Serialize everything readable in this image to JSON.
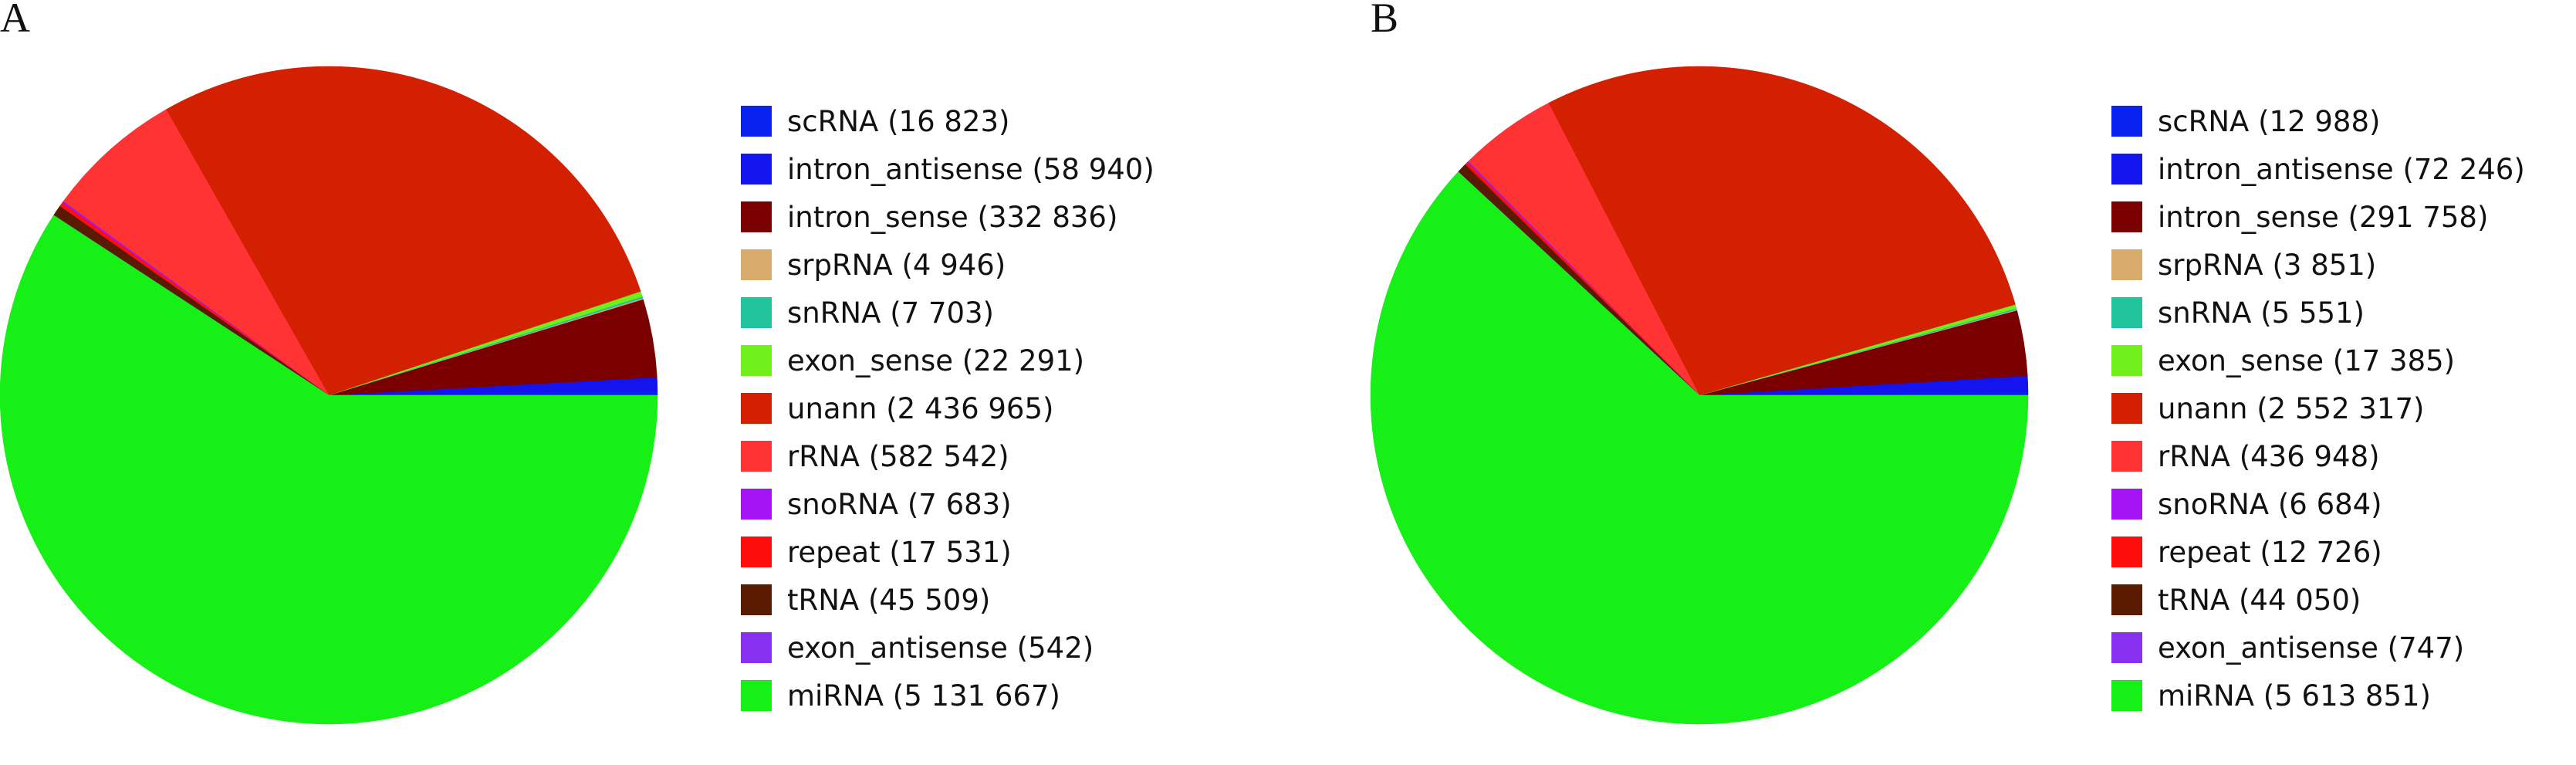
{
  "chart_data": [
    {
      "type": "pie",
      "panel_label": "A",
      "start_angle_deg": 0,
      "direction": "counterclockwise",
      "legend_placement": "right",
      "slices": [
        {
          "label": "scRNA",
          "count": "(16 823)",
          "value": 16823,
          "color": "#0a22f0"
        },
        {
          "label": "intron_antisense",
          "count": "(58 940)",
          "value": 58940,
          "color": "#1414ee"
        },
        {
          "label": "intron_sense",
          "count": "(332 836)",
          "value": 332836,
          "color": "#7a0000"
        },
        {
          "label": "srpRNA",
          "count": "(4 946)",
          "value": 4946,
          "color": "#d8aa6c"
        },
        {
          "label": "snRNA",
          "count": "(7 703)",
          "value": 7703,
          "color": "#21c49c"
        },
        {
          "label": "exon_sense",
          "count": "(22 291)",
          "value": 22291,
          "color": "#70f01a"
        },
        {
          "label": "unann",
          "count": "(2 436 965)",
          "value": 2436965,
          "color": "#d22000"
        },
        {
          "label": "rRNA",
          "count": "(582 542)",
          "value": 582542,
          "color": "#ff3333"
        },
        {
          "label": "snoRNA",
          "count": "(7 683)",
          "value": 7683,
          "color": "#a514f5"
        },
        {
          "label": "repeat",
          "count": "(17 531)",
          "value": 17531,
          "color": "#ff0d0d"
        },
        {
          "label": "tRNA",
          "count": "(45 509)",
          "value": 45509,
          "color": "#5a1a00"
        },
        {
          "label": "exon_antisense",
          "count": "(542)",
          "value": 542,
          "color": "#8830f0"
        },
        {
          "label": "miRNA",
          "count": "(5 131 667)",
          "value": 5131667,
          "color": "#16f016"
        }
      ]
    },
    {
      "type": "pie",
      "panel_label": "B",
      "start_angle_deg": 0,
      "direction": "counterclockwise",
      "legend_placement": "right",
      "slices": [
        {
          "label": "scRNA",
          "count": "(12 988)",
          "value": 12988,
          "color": "#0a22f0"
        },
        {
          "label": "intron_antisense",
          "count": "(72 246)",
          "value": 72246,
          "color": "#1414ee"
        },
        {
          "label": "intron_sense",
          "count": "(291 758)",
          "value": 291758,
          "color": "#7a0000"
        },
        {
          "label": "srpRNA",
          "count": "(3 851)",
          "value": 3851,
          "color": "#d8aa6c"
        },
        {
          "label": "snRNA",
          "count": "(5 551)",
          "value": 5551,
          "color": "#21c49c"
        },
        {
          "label": "exon_sense",
          "count": "(17 385)",
          "value": 17385,
          "color": "#70f01a"
        },
        {
          "label": "unann",
          "count": "(2 552 317)",
          "value": 2552317,
          "color": "#d22000"
        },
        {
          "label": "rRNA",
          "count": "(436 948)",
          "value": 436948,
          "color": "#ff3333"
        },
        {
          "label": "snoRNA",
          "count": "(6 684)",
          "value": 6684,
          "color": "#a514f5"
        },
        {
          "label": "repeat",
          "count": "(12 726)",
          "value": 12726,
          "color": "#ff0d0d"
        },
        {
          "label": "tRNA",
          "count": "(44 050)",
          "value": 44050,
          "color": "#5a1a00"
        },
        {
          "label": "exon_antisense",
          "count": "(747)",
          "value": 747,
          "color": "#8830f0"
        },
        {
          "label": "miRNA",
          "count": "(5 613 851)",
          "value": 5613851,
          "color": "#16f016"
        }
      ]
    }
  ]
}
